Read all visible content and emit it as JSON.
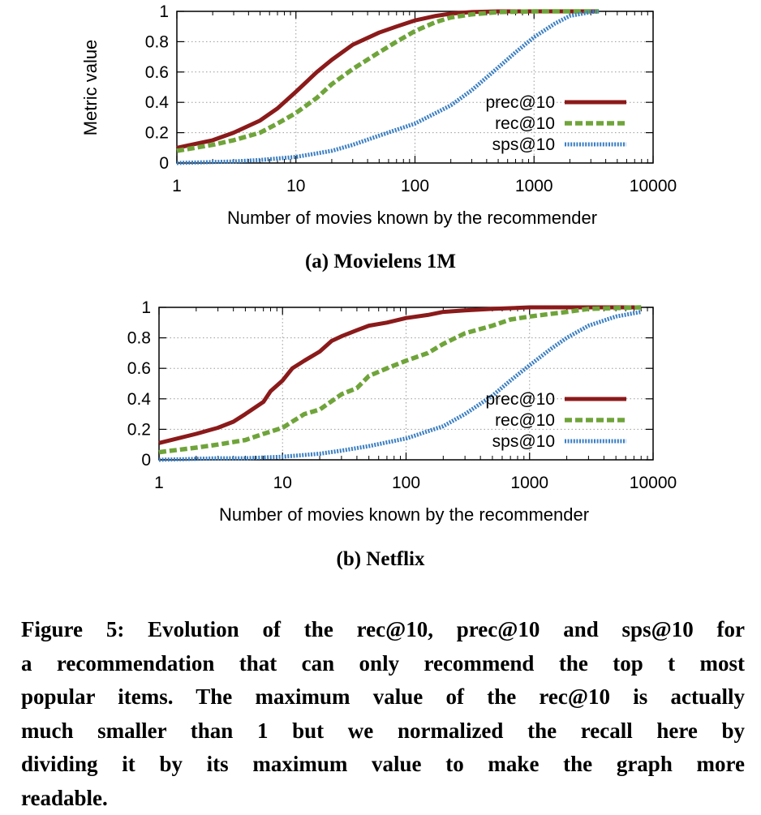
{
  "chart_data": [
    {
      "type": "line",
      "panel": "a",
      "xscale": "log",
      "xlim": [
        1,
        10000
      ],
      "ylim": [
        0,
        1
      ],
      "xticks": [
        "1",
        "10",
        "100",
        "1000",
        "10000"
      ],
      "yticks": [
        "0",
        "0.2",
        "0.4",
        "0.6",
        "0.8",
        "1"
      ],
      "xlabel": "Number of movies known by the recommender",
      "ylabel": "Metric value",
      "grid": true,
      "legend_position": "right",
      "series": [
        {
          "name": "prec@10",
          "color": "#8b1a1a",
          "style": "solid",
          "points": [
            [
              1,
              0.1
            ],
            [
              2,
              0.15
            ],
            [
              3,
              0.2
            ],
            [
              5,
              0.28
            ],
            [
              7,
              0.36
            ],
            [
              10,
              0.47
            ],
            [
              15,
              0.6
            ],
            [
              20,
              0.68
            ],
            [
              30,
              0.78
            ],
            [
              50,
              0.86
            ],
            [
              70,
              0.9
            ],
            [
              100,
              0.94
            ],
            [
              150,
              0.97
            ],
            [
              200,
              0.985
            ],
            [
              300,
              0.995
            ],
            [
              500,
              1.0
            ],
            [
              1000,
              1.0
            ],
            [
              3500,
              1.0
            ]
          ]
        },
        {
          "name": "rec@10",
          "color": "#6fa43a",
          "style": "dashed",
          "points": [
            [
              1,
              0.08
            ],
            [
              2,
              0.12
            ],
            [
              3,
              0.15
            ],
            [
              5,
              0.2
            ],
            [
              7,
              0.26
            ],
            [
              10,
              0.33
            ],
            [
              15,
              0.43
            ],
            [
              20,
              0.52
            ],
            [
              30,
              0.62
            ],
            [
              50,
              0.73
            ],
            [
              70,
              0.8
            ],
            [
              100,
              0.87
            ],
            [
              150,
              0.93
            ],
            [
              200,
              0.96
            ],
            [
              300,
              0.98
            ],
            [
              500,
              0.995
            ],
            [
              1000,
              1.0
            ],
            [
              3500,
              1.0
            ]
          ]
        },
        {
          "name": "sps@10",
          "color": "#3b7fc4",
          "style": "dotted",
          "points": [
            [
              1,
              0.0
            ],
            [
              3,
              0.01
            ],
            [
              5,
              0.02
            ],
            [
              10,
              0.04
            ],
            [
              20,
              0.08
            ],
            [
              30,
              0.12
            ],
            [
              50,
              0.18
            ],
            [
              100,
              0.26
            ],
            [
              200,
              0.38
            ],
            [
              300,
              0.48
            ],
            [
              500,
              0.63
            ],
            [
              700,
              0.73
            ],
            [
              1000,
              0.83
            ],
            [
              1500,
              0.92
            ],
            [
              2000,
              0.97
            ],
            [
              3000,
              0.995
            ],
            [
              3500,
              1.0
            ]
          ]
        }
      ]
    },
    {
      "type": "line",
      "panel": "b",
      "xscale": "log",
      "xlim": [
        1,
        10000
      ],
      "ylim": [
        0,
        1
      ],
      "xticks": [
        "1",
        "10",
        "100",
        "1000",
        "10000"
      ],
      "yticks": [
        "0",
        "0.2",
        "0.4",
        "0.6",
        "0.8",
        "1"
      ],
      "xlabel": "Number of movies known by the recommender",
      "ylabel": "",
      "grid": true,
      "legend_position": "right",
      "series": [
        {
          "name": "prec@10",
          "color": "#8b1a1a",
          "style": "solid",
          "points": [
            [
              1,
              0.11
            ],
            [
              2,
              0.17
            ],
            [
              3,
              0.21
            ],
            [
              4,
              0.25
            ],
            [
              5,
              0.3
            ],
            [
              7,
              0.38
            ],
            [
              8,
              0.45
            ],
            [
              10,
              0.52
            ],
            [
              12,
              0.6
            ],
            [
              15,
              0.65
            ],
            [
              20,
              0.71
            ],
            [
              25,
              0.78
            ],
            [
              30,
              0.81
            ],
            [
              40,
              0.85
            ],
            [
              50,
              0.88
            ],
            [
              70,
              0.9
            ],
            [
              100,
              0.93
            ],
            [
              150,
              0.95
            ],
            [
              200,
              0.97
            ],
            [
              300,
              0.98
            ],
            [
              500,
              0.99
            ],
            [
              1000,
              1.0
            ],
            [
              2000,
              1.0
            ],
            [
              8000,
              1.0
            ]
          ]
        },
        {
          "name": "rec@10",
          "color": "#6fa43a",
          "style": "dashed",
          "points": [
            [
              1,
              0.05
            ],
            [
              2,
              0.08
            ],
            [
              3,
              0.1
            ],
            [
              5,
              0.13
            ],
            [
              7,
              0.17
            ],
            [
              10,
              0.21
            ],
            [
              15,
              0.3
            ],
            [
              20,
              0.33
            ],
            [
              30,
              0.43
            ],
            [
              40,
              0.47
            ],
            [
              50,
              0.55
            ],
            [
              70,
              0.6
            ],
            [
              100,
              0.65
            ],
            [
              150,
              0.7
            ],
            [
              200,
              0.76
            ],
            [
              300,
              0.83
            ],
            [
              500,
              0.88
            ],
            [
              700,
              0.92
            ],
            [
              1000,
              0.94
            ],
            [
              2000,
              0.97
            ],
            [
              3000,
              0.99
            ],
            [
              8000,
              1.0
            ]
          ]
        },
        {
          "name": "sps@10",
          "color": "#3b7fc4",
          "style": "dotted",
          "points": [
            [
              1,
              0.0
            ],
            [
              3,
              0.01
            ],
            [
              5,
              0.01
            ],
            [
              10,
              0.02
            ],
            [
              20,
              0.04
            ],
            [
              30,
              0.06
            ],
            [
              50,
              0.09
            ],
            [
              100,
              0.14
            ],
            [
              200,
              0.22
            ],
            [
              300,
              0.3
            ],
            [
              500,
              0.42
            ],
            [
              700,
              0.52
            ],
            [
              1000,
              0.62
            ],
            [
              1500,
              0.73
            ],
            [
              2000,
              0.8
            ],
            [
              3000,
              0.88
            ],
            [
              5000,
              0.94
            ],
            [
              8000,
              0.97
            ]
          ]
        }
      ]
    }
  ],
  "subcaptions": {
    "a": "(a) Movielens 1M",
    "b": "(b) Netflix"
  },
  "figure_caption": {
    "lines": [
      "Figure 5: Evolution of the rec@10, prec@10 and sps@10 for",
      "a recommendation that can only recommend the top t most",
      "popular items. The maximum value of the rec@10 is actually",
      "much smaller than 1 but we normalized the recall here by",
      "dividing it by its maximum value to make the graph more",
      "readable."
    ]
  }
}
